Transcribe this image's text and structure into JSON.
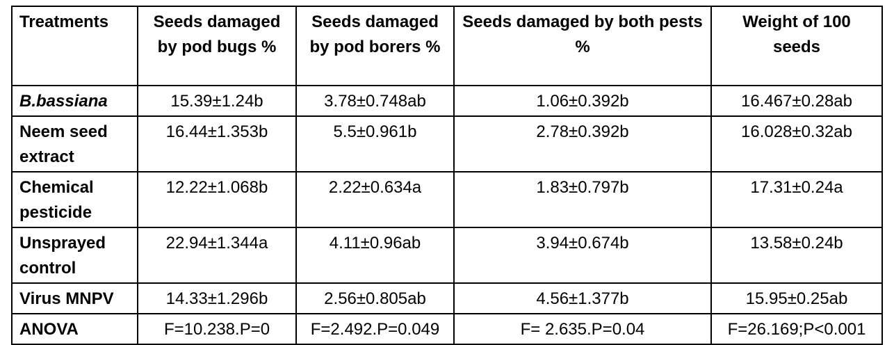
{
  "table": {
    "headers": [
      "Treatments",
      "Seeds damaged by pod bugs %",
      "Seeds damaged by pod borers %",
      "Seeds damaged by both pests %",
      "Weight of 100 seeds"
    ],
    "rows": [
      {
        "treatment": "B.bassiana",
        "pod_bugs": "15.39±1.24b",
        "pod_borers": "3.78±0.748ab",
        "both_pests": "1.06±0.392b",
        "weight": "16.467±0.28ab"
      },
      {
        "treatment": "Neem seed extract",
        "pod_bugs": "16.44±1.353b",
        "pod_borers": "5.5±0.961b",
        "both_pests": "2.78±0.392b",
        "weight": "16.028±0.32ab"
      },
      {
        "treatment": "Chemical pesticide",
        "pod_bugs": "12.22±1.068b",
        "pod_borers": "2.22±0.634a",
        "both_pests": "1.83±0.797b",
        "weight": "17.31±0.24a"
      },
      {
        "treatment": "Unsprayed control",
        "pod_bugs": "22.94±1.344a",
        "pod_borers": "4.11±0.96ab",
        "both_pests": "3.94±0.674b",
        "weight": "13.58±0.24b"
      },
      {
        "treatment": "Virus MNPV",
        "pod_bugs": "14.33±1.296b",
        "pod_borers": "2.56±0.805ab",
        "both_pests": "4.56±1.377b",
        "weight": "15.95±0.25ab"
      },
      {
        "treatment": "ANOVA",
        "pod_bugs": "F=10.238.P=0",
        "pod_borers": "F=2.492.P=0.049",
        "both_pests": "F= 2.635.P=0.04",
        "weight": "F=26.169;P<0.001"
      }
    ]
  }
}
